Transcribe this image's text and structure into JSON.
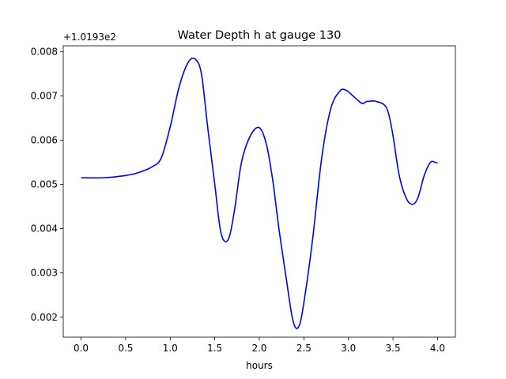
{
  "chart_data": {
    "type": "line",
    "title": "Water Depth h at gauge 130",
    "xlabel": "hours",
    "ylabel": "",
    "offset_label": "+1.0193e2",
    "xlim": [
      -0.2,
      4.2
    ],
    "ylim": [
      0.00155,
      0.00813
    ],
    "x_ticks": [
      0.0,
      0.5,
      1.0,
      1.5,
      2.0,
      2.5,
      3.0,
      3.5,
      4.0
    ],
    "x_tick_labels": [
      "0.0",
      "0.5",
      "1.0",
      "1.5",
      "2.0",
      "2.5",
      "3.0",
      "3.5",
      "4.0"
    ],
    "y_ticks": [
      0.002,
      0.003,
      0.004,
      0.005,
      0.006,
      0.007,
      0.008
    ],
    "y_tick_labels": [
      "0.002",
      "0.003",
      "0.004",
      "0.005",
      "0.006",
      "0.007",
      "0.008"
    ],
    "grid": false,
    "series": [
      {
        "color": "#0000ff",
        "x": [
          0.0,
          0.25,
          0.5,
          0.65,
          0.8,
          0.9,
          1.0,
          1.1,
          1.2,
          1.28,
          1.35,
          1.42,
          1.5,
          1.57,
          1.65,
          1.72,
          1.8,
          1.9,
          2.0,
          2.08,
          2.15,
          2.22,
          2.3,
          2.38,
          2.45,
          2.52,
          2.6,
          2.7,
          2.8,
          2.9,
          2.97,
          3.05,
          3.15,
          3.2,
          3.25,
          3.3,
          3.4,
          3.45,
          3.5,
          3.57,
          3.65,
          3.72,
          3.78,
          3.85,
          3.92,
          3.97,
          4.0
        ],
        "y": [
          0.00515,
          0.00515,
          0.0052,
          0.00527,
          0.0054,
          0.0056,
          0.0063,
          0.0072,
          0.00775,
          0.00783,
          0.0075,
          0.0063,
          0.005,
          0.0039,
          0.00375,
          0.0044,
          0.0055,
          0.0061,
          0.00628,
          0.0059,
          0.0051,
          0.004,
          0.0029,
          0.0019,
          0.00182,
          0.0026,
          0.0038,
          0.0056,
          0.0067,
          0.0071,
          0.00713,
          0.007,
          0.00683,
          0.00687,
          0.00688,
          0.00688,
          0.0068,
          0.0066,
          0.0061,
          0.0052,
          0.00468,
          0.00455,
          0.0047,
          0.0052,
          0.0055,
          0.0055,
          0.00548
        ]
      }
    ]
  }
}
